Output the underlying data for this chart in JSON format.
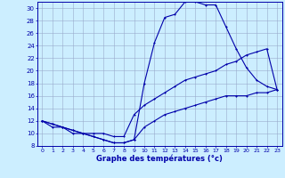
{
  "xlabel": "Graphe des températures (°c)",
  "background_color": "#cceeff",
  "grid_color": "#99aacc",
  "line_color": "#0000aa",
  "xlim": [
    -0.5,
    23.5
  ],
  "ylim": [
    8,
    31
  ],
  "xticks": [
    0,
    1,
    2,
    3,
    4,
    5,
    6,
    7,
    8,
    9,
    10,
    11,
    12,
    13,
    14,
    15,
    16,
    17,
    18,
    19,
    20,
    21,
    22,
    23
  ],
  "yticks": [
    8,
    10,
    12,
    14,
    16,
    18,
    20,
    22,
    24,
    26,
    28,
    30
  ],
  "curve_max": {
    "x": [
      0,
      1,
      2,
      3,
      4,
      5,
      6,
      7,
      8,
      9,
      10,
      11,
      12,
      13,
      14,
      15,
      16,
      17,
      18,
      19,
      20,
      21,
      22,
      23
    ],
    "y": [
      12,
      11,
      11,
      10,
      10,
      9.5,
      9,
      8.5,
      8.5,
      9,
      18,
      24.5,
      28.5,
      29,
      31,
      31,
      30.5,
      30.5,
      27,
      23.5,
      20.5,
      18.5,
      17.5,
      17
    ]
  },
  "curve_mid": {
    "x": [
      0,
      1,
      2,
      3,
      4,
      5,
      6,
      7,
      8,
      9,
      10,
      11,
      12,
      13,
      14,
      15,
      16,
      17,
      18,
      19,
      20,
      21,
      22,
      23
    ],
    "y": [
      12,
      11.5,
      11,
      10.5,
      10,
      10,
      10,
      9.5,
      9.5,
      13,
      14.5,
      15.5,
      16.5,
      17.5,
      18.5,
      19,
      19.5,
      20,
      21,
      21.5,
      22.5,
      23,
      23.5,
      17
    ]
  },
  "curve_min": {
    "x": [
      0,
      1,
      2,
      3,
      4,
      5,
      6,
      7,
      8,
      9,
      10,
      11,
      12,
      13,
      14,
      15,
      16,
      17,
      18,
      19,
      20,
      21,
      22,
      23
    ],
    "y": [
      12,
      11.5,
      11,
      10.5,
      10,
      9.5,
      9,
      8.5,
      8.5,
      9,
      11,
      12,
      13,
      13.5,
      14,
      14.5,
      15,
      15.5,
      16,
      16,
      16,
      16.5,
      16.5,
      17
    ]
  }
}
